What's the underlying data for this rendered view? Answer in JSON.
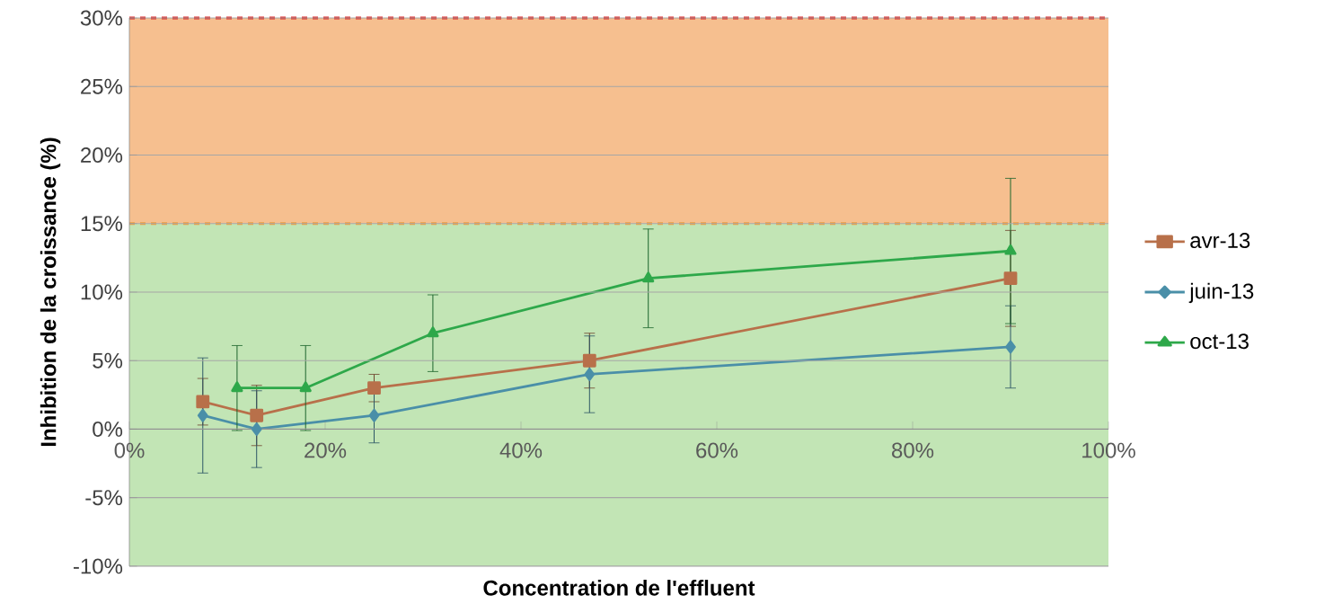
{
  "chart_data": {
    "type": "line",
    "xlabel": "Concentration de l'effluent",
    "ylabel": "Inhibition de la croissance (%)",
    "xlim": [
      0,
      100
    ],
    "xticks": [
      {
        "value": 0,
        "label": "0%"
      },
      {
        "value": 20,
        "label": "20%"
      },
      {
        "value": 40,
        "label": "40%"
      },
      {
        "value": 60,
        "label": "60%"
      },
      {
        "value": 80,
        "label": "80%"
      },
      {
        "value": 100,
        "label": "100%"
      }
    ],
    "ylim": [
      -10,
      30
    ],
    "yticks": [
      {
        "value": -10,
        "label": "-10%"
      },
      {
        "value": -5,
        "label": "-5%"
      },
      {
        "value": 0,
        "label": "0%"
      },
      {
        "value": 5,
        "label": "5%"
      },
      {
        "value": 10,
        "label": "10%"
      },
      {
        "value": 15,
        "label": "15%"
      },
      {
        "value": 20,
        "label": "20%"
      },
      {
        "value": 25,
        "label": "25%"
      },
      {
        "value": 30,
        "label": "30%"
      }
    ],
    "grid": "y",
    "legend": "right",
    "line_style": "solid",
    "bands": [
      {
        "axis": "y",
        "from": -10,
        "to": 15,
        "color": "#c2e5b5"
      },
      {
        "axis": "y",
        "from": 15,
        "to": 30,
        "color": "#f6bf8f"
      }
    ],
    "ref_lines": [
      {
        "axis": "y",
        "value": 15,
        "color": "#f0a040",
        "line_style": "dashed"
      },
      {
        "axis": "y",
        "value": 30,
        "color": "#e02020",
        "line_style": "dashed"
      }
    ],
    "series": [
      {
        "name": "avr-13",
        "color": "#b8704a",
        "marker": "square",
        "x": [
          7.5,
          13,
          25,
          47,
          90
        ],
        "values": [
          2,
          1,
          3,
          5,
          11
        ],
        "errors": [
          1.7,
          2.2,
          1,
          2,
          3.5
        ]
      },
      {
        "name": "juin-13",
        "color": "#4a8fa8",
        "marker": "diamond",
        "x": [
          7.5,
          13,
          25,
          47,
          90
        ],
        "values": [
          1,
          0,
          1,
          4,
          6
        ],
        "errors": [
          4.2,
          2.8,
          2,
          2.8,
          3
        ]
      },
      {
        "name": "oct-13",
        "color": "#2ea84a",
        "marker": "triangle",
        "x": [
          11,
          18,
          31,
          53,
          90
        ],
        "values": [
          3,
          3,
          7,
          11,
          13
        ],
        "errors": [
          3.1,
          3.1,
          2.8,
          3.6,
          5.3
        ]
      }
    ]
  }
}
